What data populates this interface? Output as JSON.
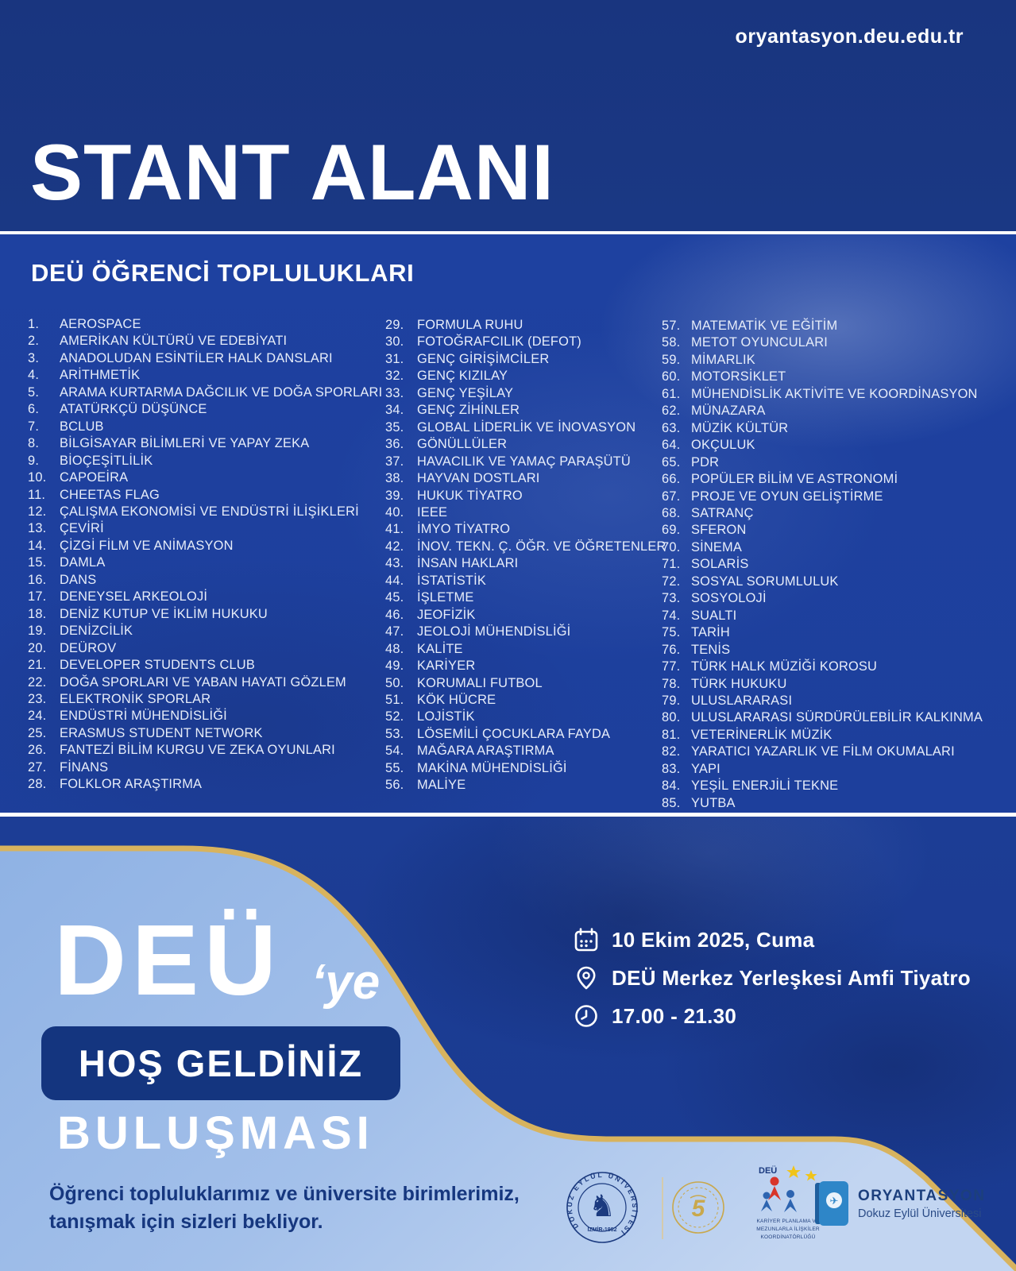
{
  "header": {
    "url": "oryantasyon.deu.edu.tr",
    "title": "STANT ALANI",
    "section_title": "DEÜ ÖĞRENCİ TOPLULUKLARI"
  },
  "clubs": {
    "columns": [
      {
        "start": 1,
        "items": [
          "AEROSPACE",
          "AMERİKAN KÜLTÜRÜ VE EDEBİYATI",
          "ANADOLUDAN ESİNTİLER HALK DANSLARI",
          "ARİTHMETİK",
          "ARAMA KURTARMA DAĞCILIK VE DOĞA SPORLARI",
          "ATATÜRKÇÜ DÜŞÜNCE",
          "BCLUB",
          "BİLGİSAYAR BİLİMLERİ VE YAPAY ZEKA",
          "BİOÇEŞİTLİLİK",
          "CAPOEİRA",
          "CHEETAS FLAG",
          "ÇALIŞMA EKONOMİSİ VE ENDÜSTRİ İLİŞİKLERİ",
          "ÇEVİRİ",
          "ÇİZGİ FİLM VE ANİMASYON",
          "DAMLA",
          "DANS",
          "DENEYSEL ARKEOLOJİ",
          "DENİZ KUTUP VE İKLİM HUKUKU",
          "DENİZCİLİK",
          "DEÜROV",
          "DEVELOPER STUDENTS CLUB",
          "DOĞA SPORLARI VE YABAN HAYATI GÖZLEM",
          "ELEKTRONİK SPORLAR",
          "ENDÜSTRİ MÜHENDİSLİĞİ",
          "ERASMUS STUDENT NETWORK",
          "FANTEZİ BİLİM KURGU VE ZEKA OYUNLARI",
          "FİNANS",
          "FOLKLOR ARAŞTIRMA"
        ]
      },
      {
        "start": 29,
        "items": [
          "FORMULA RUHU",
          "FOTOĞRAFCILIK (DEFOT)",
          "GENÇ GİRİŞİMCİLER",
          "GENÇ KIZILAY",
          "GENÇ YEŞİLAY",
          "GENÇ ZİHİNLER",
          "GLOBAL LİDERLİK VE İNOVASYON",
          "GÖNÜLLÜLER",
          "HAVACILIK VE YAMAÇ PARAŞÜTÜ",
          "HAYVAN DOSTLARI",
          "HUKUK TİYATRO",
          "IEEE",
          "İMYO TİYATRO",
          "İNOV. TEKN. Ç. ÖĞR. VE ÖĞRETENLER",
          "İNSAN HAKLARI",
          "İSTATİSTİK",
          "İŞLETME",
          "JEOFİZİK",
          "JEOLOJİ MÜHENDİSLİĞİ",
          "KALİTE",
          "KARİYER",
          "KORUMALI FUTBOL",
          "KÖK HÜCRE",
          "LOJİSTİK",
          "LÖSEMİLİ ÇOCUKLARA FAYDA",
          "MAĞARA ARAŞTIRMA",
          "MAKİNA MÜHENDİSLİĞİ",
          "MALİYE"
        ]
      },
      {
        "start": 57,
        "items": [
          "MATEMATİK VE EĞİTİM",
          "METOT OYUNCULARI",
          "MİMARLIK",
          "MOTORSİKLET",
          "MÜHENDİSLİK AKTİVİTE VE KOORDİNASYON",
          "MÜNAZARA",
          "MÜZİK KÜLTÜR",
          "OKÇULUK",
          "PDR",
          "POPÜLER BİLİM VE ASTRONOMİ",
          "PROJE VE OYUN GELİŞTİRME",
          "SATRANÇ",
          "SFERON",
          "SİNEMA",
          "SOLARİS",
          "SOSYAL SORUMLULUK",
          "SOSYOLOJİ",
          "SUALTI",
          "TARİH",
          "TENİS",
          "TÜRK HALK MÜZİĞİ KOROSU",
          "TÜRK HUKUKU",
          "ULUSLARARASI",
          "ULUSLARARASI SÜRDÜRÜLEBİLİR KALKINMA",
          "VETERİNERLİK MÜZİK",
          "YARATICI YAZARLIK VE FİLM OKUMALARI",
          "YAPI",
          "YEŞİL ENERJİLİ TEKNE",
          "YUTBA"
        ]
      }
    ]
  },
  "bottom": {
    "deu": "DEÜ",
    "ye": "‘ye",
    "hos_geldiniz": "HOŞ GELDİNİZ",
    "bulusmasi": "BULUŞMASI",
    "footer_line1": "Öğrenci topluluklarımız ve üniversite birimlerimiz,",
    "footer_line2": "tanışmak için sizleri bekliyor."
  },
  "event": {
    "details": [
      {
        "icon": "calendar-icon",
        "text": "10 Ekim 2025, Cuma"
      },
      {
        "icon": "location-icon",
        "text": "DEÜ Merkez Yerleşkesi Amfi Tiyatro"
      },
      {
        "icon": "clock-icon",
        "text": "17.00 - 21.30"
      }
    ]
  },
  "logos": {
    "seal": {
      "ring_text": "DOKUZ EYLÜL ÜNİVERSİTESİ",
      "bottom_text": "İZMİR-1982"
    },
    "gold_emblem": {
      "center_text": "5"
    },
    "kariyer": {
      "top_text": "DEÜ",
      "line1": "KARİYER PLANLAMA VE",
      "line2": "MEZUNLARLA İLİŞKİLER",
      "line3": "KOORDİNATÖRLÜĞÜ"
    },
    "oryantasyon": {
      "title": "ORYANTASYON",
      "subtitle": "Dokuz Eylül Üniversitesi"
    }
  },
  "colors": {
    "top_band": "#19357f",
    "mid_band": "#1e41a0",
    "bottom_band": "#1c3d95",
    "light_panel": "#a3c0ea",
    "gold_accent": "#d8b35e",
    "navy_box": "#14357f",
    "navy_text": "#16377f",
    "list_text": "#e7edf9"
  }
}
